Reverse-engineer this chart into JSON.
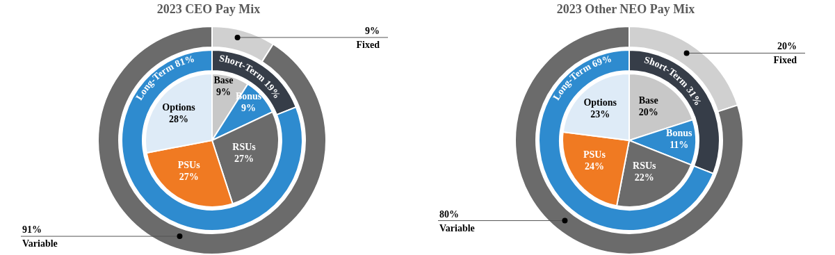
{
  "chart_data": [
    {
      "type": "pie",
      "title": "2023 CEO Pay Mix",
      "categories": [
        "Base",
        "Bonus",
        "RSUs",
        "PSUs",
        "Options"
      ],
      "values": [
        9,
        9,
        27,
        27,
        28
      ],
      "value_labels": [
        "9%",
        "9%",
        "27%",
        "27%",
        "28%"
      ],
      "colors": [
        "#c8c8c8",
        "#2e8bcf",
        "#6b6b6b",
        "#f07a22",
        "#deebf7"
      ]
    },
    {
      "type": "donut",
      "categories": [
        "Short-Term",
        "Long-Term"
      ],
      "values": [
        19,
        81
      ],
      "value_labels": [
        "19%",
        "81%"
      ],
      "colors": [
        "#363d48",
        "#2e8bcf"
      ]
    },
    {
      "type": "donut",
      "categories": [
        "Fixed",
        "Variable"
      ],
      "values": [
        9,
        91
      ],
      "value_labels": [
        "9%",
        "91%"
      ],
      "colors": [
        "#d0d0d0",
        "#6b6b6b"
      ]
    },
    {
      "type": "pie",
      "title": "2023 Other NEO Pay Mix",
      "categories": [
        "Base",
        "Bonus",
        "RSUs",
        "PSUs",
        "Options"
      ],
      "values": [
        20,
        11,
        22,
        24,
        23
      ],
      "value_labels": [
        "20%",
        "11%",
        "22%",
        "24%",
        "23%"
      ],
      "colors": [
        "#c8c8c8",
        "#2e8bcf",
        "#6b6b6b",
        "#f07a22",
        "#deebf7"
      ]
    },
    {
      "type": "donut",
      "categories": [
        "Short-Term",
        "Long-Term"
      ],
      "values": [
        31,
        69
      ],
      "value_labels": [
        "31%",
        "69%"
      ],
      "colors": [
        "#363d48",
        "#2e8bcf"
      ]
    },
    {
      "type": "donut",
      "categories": [
        "Fixed",
        "Variable"
      ],
      "values": [
        20,
        80
      ],
      "value_labels": [
        "20%",
        "80%"
      ],
      "colors": [
        "#d0d0d0",
        "#6b6b6b"
      ]
    }
  ]
}
